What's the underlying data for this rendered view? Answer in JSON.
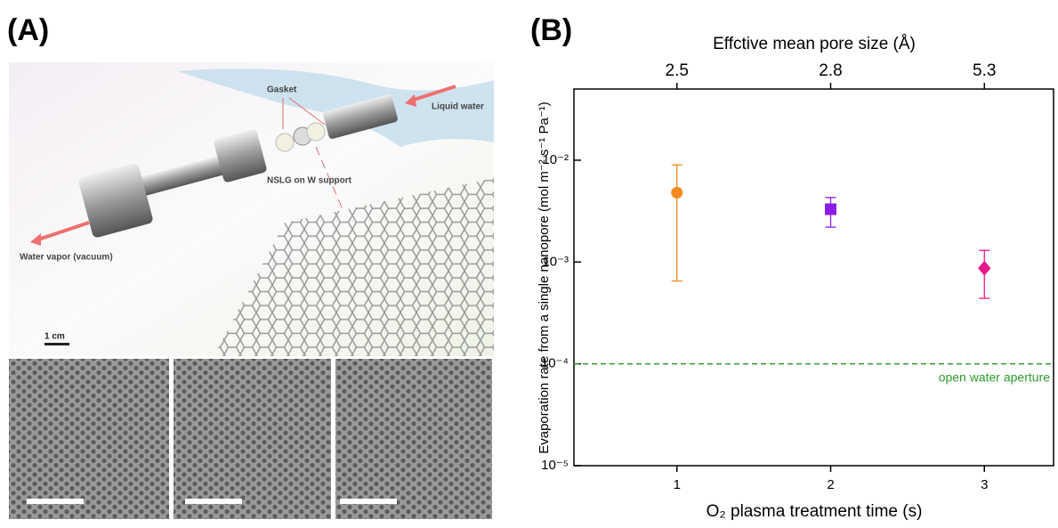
{
  "panel_a": {
    "label": "(A)",
    "annotations": {
      "gasket": "Gasket",
      "liquid": "Liquid water",
      "membrane": "NSLG on W support",
      "vapor": "Water vapor (vacuum)",
      "scale": "1 cm"
    }
  },
  "chart_data": {
    "type": "scatter",
    "panel_label": "(B)",
    "x_title": "O₂ plasma treatment time (s)",
    "y_title": "Evaporation rate from a single nanopore (mol m⁻² s⁻¹ Pa⁻¹)",
    "x2_title": "Effctive mean pore size (Å)",
    "x": [
      1,
      2,
      3
    ],
    "values": [
      0.0048,
      0.0033,
      0.00087
    ],
    "lower": [
      0.00065,
      0.0022,
      0.00044
    ],
    "upper": [
      0.009,
      0.0043,
      0.0013
    ],
    "colors": [
      "#f28a1e",
      "#8c1ee6",
      "#e8168c"
    ],
    "markers": [
      "circle",
      "square",
      "diamond"
    ],
    "xlim": [
      0.33,
      3.45
    ],
    "xticks": [
      1,
      2,
      3
    ],
    "x2ticks": [
      {
        "value": 1,
        "label": "2.5"
      },
      {
        "value": 2,
        "label": "2.8"
      },
      {
        "value": 3,
        "label": "5.3"
      }
    ],
    "ylog": true,
    "ylim": [
      1e-05,
      0.05
    ],
    "yticks": [
      {
        "value": 1e-05,
        "label": "10⁻⁵"
      },
      {
        "value": 0.0001,
        "label": "10⁻⁴"
      },
      {
        "value": 0.001,
        "label": "10⁻³"
      },
      {
        "value": 0.01,
        "label": "10⁻²"
      }
    ],
    "reference_line": {
      "value": 0.0001,
      "label": "open water aperture",
      "color": "#2e9a2e"
    }
  }
}
